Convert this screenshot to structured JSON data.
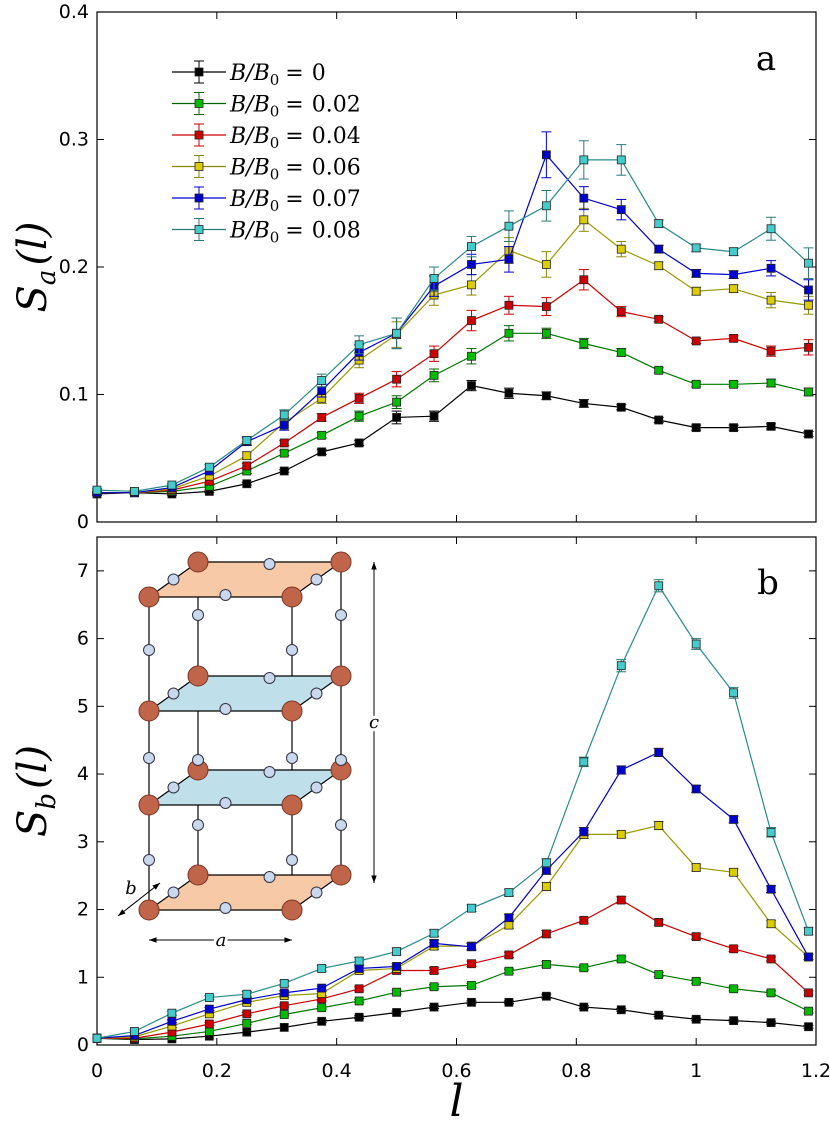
{
  "chart_data": [
    {
      "panel": "a",
      "type": "line",
      "ylabel_main": "S",
      "ylabel_sub": "a",
      "ylabel_arg": "(l)",
      "xlim": [
        0,
        1.2
      ],
      "ylim": [
        0,
        0.4
      ],
      "x": [
        0,
        0.0625,
        0.125,
        0.1875,
        0.25,
        0.3125,
        0.375,
        0.4375,
        0.5,
        0.5625,
        0.625,
        0.6875,
        0.75,
        0.8125,
        0.875,
        0.9375,
        1.0,
        1.0625,
        1.125,
        1.1875
      ],
      "yticks": [
        0,
        0.1,
        0.2,
        0.3,
        0.4
      ],
      "ytick_labels": [
        "0",
        "0.1",
        "0.2",
        "0.3",
        "0.4"
      ],
      "series": [
        {
          "name": "B/B₀ = 0",
          "color": "#000000",
          "values": [
            0.022,
            0.023,
            0.022,
            0.024,
            0.03,
            0.04,
            0.055,
            0.062,
            0.082,
            0.083,
            0.107,
            0.101,
            0.099,
            0.093,
            0.09,
            0.08,
            0.074,
            0.074,
            0.075,
            0.069
          ],
          "errors": [
            0.001,
            0.001,
            0.001,
            0.001,
            0.001,
            0.001,
            0.002,
            0.002,
            0.005,
            0.004,
            0.004,
            0.004,
            0.003,
            0.003,
            0.002,
            0.002,
            0.002,
            0.002,
            0.002,
            0.002
          ]
        },
        {
          "name": "B/B₀ = 0.02",
          "color": "#00bb00",
          "values": [
            0.023,
            0.023,
            0.024,
            0.028,
            0.04,
            0.054,
            0.068,
            0.083,
            0.094,
            0.115,
            0.13,
            0.148,
            0.148,
            0.14,
            0.133,
            0.119,
            0.108,
            0.108,
            0.109,
            0.102
          ],
          "errors": [
            0.001,
            0.001,
            0.001,
            0.001,
            0.002,
            0.002,
            0.002,
            0.004,
            0.005,
            0.005,
            0.006,
            0.006,
            0.004,
            0.004,
            0.003,
            0.002,
            0.002,
            0.002,
            0.003,
            0.003
          ]
        },
        {
          "name": "B/B₀ = 0.04",
          "color": "#cc0000",
          "values": [
            0.023,
            0.023,
            0.025,
            0.032,
            0.044,
            0.062,
            0.082,
            0.097,
            0.112,
            0.132,
            0.158,
            0.17,
            0.169,
            0.19,
            0.165,
            0.159,
            0.142,
            0.144,
            0.134,
            0.137
          ],
          "errors": [
            0.001,
            0.001,
            0.001,
            0.002,
            0.002,
            0.002,
            0.003,
            0.004,
            0.006,
            0.006,
            0.008,
            0.007,
            0.007,
            0.008,
            0.004,
            0.002,
            0.002,
            0.002,
            0.004,
            0.006
          ]
        },
        {
          "name": "B/B₀ = 0.06",
          "color": "#ddcc00",
          "values": [
            0.023,
            0.023,
            0.026,
            0.036,
            0.052,
            0.078,
            0.097,
            0.127,
            0.147,
            0.178,
            0.186,
            0.213,
            0.202,
            0.237,
            0.214,
            0.201,
            0.181,
            0.183,
            0.174,
            0.17
          ],
          "errors": [
            0.001,
            0.001,
            0.001,
            0.002,
            0.003,
            0.004,
            0.004,
            0.006,
            0.01,
            0.008,
            0.008,
            0.01,
            0.01,
            0.009,
            0.006,
            0.003,
            0.003,
            0.003,
            0.006,
            0.007
          ]
        },
        {
          "name": "B/B₀ = 0.07",
          "color": "#0000cc",
          "values": [
            0.023,
            0.023,
            0.027,
            0.04,
            0.063,
            0.076,
            0.103,
            0.133,
            0.148,
            0.185,
            0.202,
            0.206,
            0.288,
            0.254,
            0.245,
            0.214,
            0.195,
            0.194,
            0.199,
            0.182
          ],
          "errors": [
            0.001,
            0.001,
            0.001,
            0.002,
            0.003,
            0.004,
            0.005,
            0.006,
            0.012,
            0.008,
            0.008,
            0.01,
            0.018,
            0.009,
            0.008,
            0.003,
            0.003,
            0.003,
            0.006,
            0.008
          ]
        },
        {
          "name": "B/B₀ = 0.08",
          "color": "#44cccc",
          "values": [
            0.025,
            0.024,
            0.029,
            0.043,
            0.064,
            0.084,
            0.111,
            0.139,
            0.148,
            0.191,
            0.216,
            0.232,
            0.248,
            0.284,
            0.284,
            0.234,
            0.215,
            0.212,
            0.23,
            0.203
          ],
          "errors": [
            0.001,
            0.001,
            0.001,
            0.002,
            0.003,
            0.004,
            0.005,
            0.007,
            0.012,
            0.009,
            0.008,
            0.012,
            0.012,
            0.015,
            0.012,
            0.003,
            0.003,
            0.003,
            0.009,
            0.012
          ]
        }
      ]
    },
    {
      "panel": "b",
      "type": "line",
      "xlabel": "l",
      "ylabel_main": "S",
      "ylabel_sub": "b",
      "ylabel_arg": "(l)",
      "xlim": [
        0,
        1.2
      ],
      "ylim": [
        0,
        7.5
      ],
      "x": [
        0,
        0.0625,
        0.125,
        0.1875,
        0.25,
        0.3125,
        0.375,
        0.4375,
        0.5,
        0.5625,
        0.625,
        0.6875,
        0.75,
        0.8125,
        0.875,
        0.9375,
        1.0,
        1.0625,
        1.125,
        1.1875
      ],
      "xticks": [
        0,
        0.2,
        0.4,
        0.6,
        0.8,
        1.0,
        1.2
      ],
      "xtick_labels": [
        "0",
        "0.2",
        "0.4",
        "0.6",
        "0.8",
        "1",
        "1.2"
      ],
      "yticks": [
        0,
        1,
        2,
        3,
        4,
        5,
        6,
        7
      ],
      "ytick_labels": [
        "0",
        "1",
        "2",
        "3",
        "4",
        "5",
        "6",
        "7"
      ],
      "series": [
        {
          "name": "B/B₀ = 0",
          "color": "#000000",
          "values": [
            0.1,
            0.08,
            0.09,
            0.13,
            0.19,
            0.26,
            0.35,
            0.41,
            0.48,
            0.56,
            0.63,
            0.63,
            0.72,
            0.56,
            0.52,
            0.44,
            0.38,
            0.36,
            0.33,
            0.27
          ],
          "errors": [
            0.01,
            0.01,
            0.01,
            0.01,
            0.01,
            0.01,
            0.02,
            0.02,
            0.02,
            0.02,
            0.02,
            0.02,
            0.03,
            0.02,
            0.02,
            0.02,
            0.02,
            0.02,
            0.02,
            0.02
          ]
        },
        {
          "name": "B/B₀ = 0.02",
          "color": "#00bb00",
          "values": [
            0.1,
            0.09,
            0.13,
            0.2,
            0.32,
            0.45,
            0.55,
            0.65,
            0.78,
            0.86,
            0.88,
            1.09,
            1.19,
            1.14,
            1.27,
            1.04,
            0.94,
            0.83,
            0.77,
            0.5
          ],
          "errors": [
            0.01,
            0.01,
            0.01,
            0.01,
            0.02,
            0.02,
            0.02,
            0.02,
            0.03,
            0.03,
            0.03,
            0.03,
            0.04,
            0.03,
            0.04,
            0.03,
            0.03,
            0.03,
            0.03,
            0.03
          ]
        },
        {
          "name": "B/B₀ = 0.04",
          "color": "#cc0000",
          "values": [
            0.1,
            0.1,
            0.19,
            0.31,
            0.46,
            0.58,
            0.68,
            0.83,
            1.1,
            1.1,
            1.2,
            1.33,
            1.64,
            1.84,
            2.14,
            1.81,
            1.6,
            1.42,
            1.27,
            0.77
          ],
          "errors": [
            0.01,
            0.01,
            0.01,
            0.02,
            0.02,
            0.02,
            0.03,
            0.03,
            0.04,
            0.04,
            0.04,
            0.04,
            0.05,
            0.04,
            0.05,
            0.04,
            0.04,
            0.04,
            0.03,
            0.03
          ]
        },
        {
          "name": "B/B₀ = 0.06",
          "color": "#ddcc00",
          "values": [
            0.1,
            0.12,
            0.28,
            0.46,
            0.63,
            0.73,
            0.76,
            1.1,
            1.13,
            1.46,
            1.46,
            1.77,
            2.34,
            3.11,
            3.11,
            3.24,
            2.62,
            2.55,
            1.79,
            1.3
          ],
          "errors": [
            0.01,
            0.01,
            0.02,
            0.02,
            0.03,
            0.03,
            0.03,
            0.04,
            0.04,
            0.05,
            0.05,
            0.05,
            0.06,
            0.06,
            0.05,
            0.06,
            0.05,
            0.05,
            0.05,
            0.04
          ]
        },
        {
          "name": "B/B₀ = 0.07",
          "color": "#0000cc",
          "values": [
            0.1,
            0.14,
            0.35,
            0.53,
            0.67,
            0.77,
            0.84,
            1.13,
            1.16,
            1.5,
            1.45,
            1.88,
            2.58,
            3.15,
            4.06,
            4.32,
            3.78,
            3.33,
            2.3,
            1.3
          ],
          "errors": [
            0.01,
            0.01,
            0.02,
            0.02,
            0.03,
            0.03,
            0.03,
            0.04,
            0.04,
            0.05,
            0.05,
            0.05,
            0.06,
            0.06,
            0.06,
            0.06,
            0.05,
            0.05,
            0.05,
            0.04
          ]
        },
        {
          "name": "B/B₀ = 0.08",
          "color": "#44cccc",
          "values": [
            0.1,
            0.2,
            0.47,
            0.7,
            0.75,
            0.91,
            1.13,
            1.24,
            1.38,
            1.65,
            2.02,
            2.25,
            2.69,
            4.18,
            5.6,
            6.78,
            5.92,
            5.2,
            3.14,
            1.68
          ],
          "errors": [
            0.01,
            0.02,
            0.03,
            0.03,
            0.04,
            0.04,
            0.04,
            0.05,
            0.05,
            0.05,
            0.05,
            0.05,
            0.06,
            0.07,
            0.09,
            0.09,
            0.08,
            0.08,
            0.07,
            0.05
          ]
        }
      ]
    }
  ],
  "legend": {
    "prefix_main": "B/B",
    "prefix_sub": "0",
    "eq": "=",
    "values": [
      "0",
      "0.02",
      "0.04",
      "0.06",
      "0.07",
      "0.08"
    ]
  },
  "panel_labels": {
    "a": "a",
    "b": "b"
  },
  "inset": {
    "label_a": "a",
    "label_b": "b",
    "label_c": "c"
  }
}
